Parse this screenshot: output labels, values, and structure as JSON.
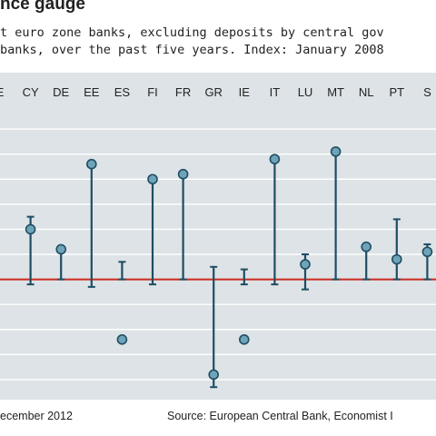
{
  "chart_data": {
    "type": "range-dot",
    "title": "nce gauge",
    "subtitle_line1": "t euro zone banks, excluding deposits by central gov",
    "subtitle_line2": "banks, over the past five years. Index: January 2008",
    "footnote_left": "ecember 2012",
    "source": "Source: European Central Bank, Economist I",
    "categories": [
      "E",
      "CY",
      "DE",
      "EE",
      "ES",
      "FI",
      "FR",
      "GR",
      "IE",
      "IT",
      "LU",
      "MT",
      "NL",
      "PT",
      "S"
    ],
    "series": [
      {
        "values": [
          null,
          120,
          112,
          146,
          76,
          140,
          142,
          62,
          76,
          148,
          106,
          151,
          113,
          108,
          111
        ],
        "high": [
          null,
          125,
          112,
          146,
          107,
          140,
          142,
          105,
          104,
          148,
          110,
          151,
          113,
          124,
          114
        ],
        "low": [
          null,
          98,
          100,
          97,
          100,
          98,
          100,
          57,
          98,
          98,
          96,
          100,
          100,
          100,
          100
        ]
      }
    ],
    "reference_line": 100,
    "ylim": [
      52,
      168
    ],
    "colors": {
      "background": "#dde3e6",
      "grid": "#ffffff",
      "reference": "#cc2a20",
      "stem": "#1f4d63",
      "dot_fill": "#6fa4b8",
      "dot_stroke": "#1f4d63"
    }
  }
}
